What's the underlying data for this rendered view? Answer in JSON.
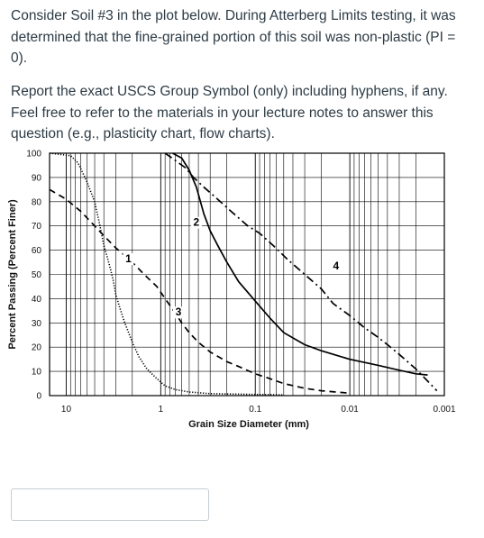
{
  "question": {
    "paragraph1": "Consider Soil #3 in the plot below. During Atterberg Limits testing, it was determined that the fine-grained portion of this soil was non-plastic (PI = 0).",
    "paragraph2": "Report the exact USCS Group Symbol (only) including hyphens, if any. Feel free to refer to the materials in your lecture notes to answer this question (e.g., plasticity chart, flow charts)."
  },
  "answer": {
    "value": "",
    "placeholder": ""
  },
  "chart_data": {
    "type": "line",
    "xlabel": "Grain Size Diameter (mm)",
    "ylabel": "Percent Passing (Percent Finer)",
    "x_scale": "log",
    "x_reversed": true,
    "xlim": [
      15,
      0.001
    ],
    "ylim": [
      0,
      100
    ],
    "x_ticks": [
      {
        "value": 10,
        "label": "10"
      },
      {
        "value": 1,
        "label": "1"
      },
      {
        "value": 0.1,
        "label": "0.1"
      },
      {
        "value": 0.01,
        "label": "0.01"
      },
      {
        "value": 0.001,
        "label": "0.001"
      }
    ],
    "y_ticks": [
      0,
      10,
      20,
      30,
      40,
      50,
      60,
      70,
      80,
      90,
      100
    ],
    "grid": true,
    "series": [
      {
        "name": "1",
        "style": "dotted",
        "points": [
          [
            15,
            100
          ],
          [
            9,
            99
          ],
          [
            7.5,
            96
          ],
          [
            6,
            88
          ],
          [
            5,
            80
          ],
          [
            4.5,
            72
          ],
          [
            4,
            62
          ],
          [
            3.5,
            54
          ],
          [
            3.2,
            48
          ],
          [
            3,
            42
          ],
          [
            2.7,
            36
          ],
          [
            2.4,
            30
          ],
          [
            2,
            22
          ],
          [
            1.7,
            16
          ],
          [
            1.4,
            11
          ],
          [
            1.1,
            7
          ],
          [
            0.9,
            4
          ],
          [
            0.7,
            2.5
          ],
          [
            0.5,
            1.5
          ],
          [
            0.3,
            0.8
          ],
          [
            0.1,
            0.5
          ],
          [
            0.05,
            0.3
          ]
        ]
      },
      {
        "name": "2",
        "style": "solid",
        "points": [
          [
            0.75,
            100
          ],
          [
            0.6,
            98
          ],
          [
            0.5,
            93
          ],
          [
            0.42,
            86
          ],
          [
            0.35,
            75
          ],
          [
            0.3,
            68
          ],
          [
            0.25,
            62
          ],
          [
            0.2,
            55
          ],
          [
            0.15,
            47
          ],
          [
            0.1,
            39
          ],
          [
            0.07,
            32
          ],
          [
            0.05,
            26
          ],
          [
            0.03,
            21
          ],
          [
            0.02,
            18.5
          ],
          [
            0.01,
            15
          ],
          [
            0.005,
            12.5
          ],
          [
            0.003,
            10.5
          ],
          [
            0.002,
            9
          ],
          [
            0.0015,
            8.5
          ]
        ]
      },
      {
        "name": "3",
        "style": "dashed",
        "points": [
          [
            15,
            85
          ],
          [
            10,
            81
          ],
          [
            7,
            76
          ],
          [
            5,
            70
          ],
          [
            4,
            66
          ],
          [
            3,
            61
          ],
          [
            2,
            55
          ],
          [
            1.5,
            50
          ],
          [
            1.1,
            45
          ],
          [
            0.9,
            40
          ],
          [
            0.7,
            34
          ],
          [
            0.6,
            30
          ],
          [
            0.5,
            26
          ],
          [
            0.4,
            22
          ],
          [
            0.3,
            18
          ],
          [
            0.2,
            14
          ],
          [
            0.15,
            12
          ],
          [
            0.1,
            9
          ],
          [
            0.07,
            7
          ],
          [
            0.05,
            5
          ],
          [
            0.03,
            3
          ],
          [
            0.02,
            2
          ],
          [
            0.01,
            1
          ]
        ]
      },
      {
        "name": "4",
        "style": "dash-dot",
        "points": [
          [
            0.9,
            100
          ],
          [
            0.7,
            97
          ],
          [
            0.55,
            94
          ],
          [
            0.45,
            90
          ],
          [
            0.35,
            86
          ],
          [
            0.25,
            81
          ],
          [
            0.18,
            76
          ],
          [
            0.12,
            70
          ],
          [
            0.09,
            67
          ],
          [
            0.065,
            62
          ],
          [
            0.045,
            56
          ],
          [
            0.03,
            50
          ],
          [
            0.02,
            44
          ],
          [
            0.015,
            38
          ],
          [
            0.01,
            33
          ],
          [
            0.007,
            28
          ],
          [
            0.005,
            24
          ],
          [
            0.004,
            21
          ],
          [
            0.003,
            17
          ],
          [
            0.002,
            11
          ],
          [
            0.0015,
            6
          ],
          [
            0.0012,
            2
          ]
        ]
      }
    ],
    "curve_labels": [
      {
        "text": "1",
        "at": [
          2.2,
          55
        ]
      },
      {
        "text": "2",
        "at": [
          0.42,
          70
        ]
      },
      {
        "text": "3",
        "at": [
          0.65,
          33
        ]
      },
      {
        "text": "4",
        "at": [
          0.014,
          52
        ]
      }
    ]
  }
}
